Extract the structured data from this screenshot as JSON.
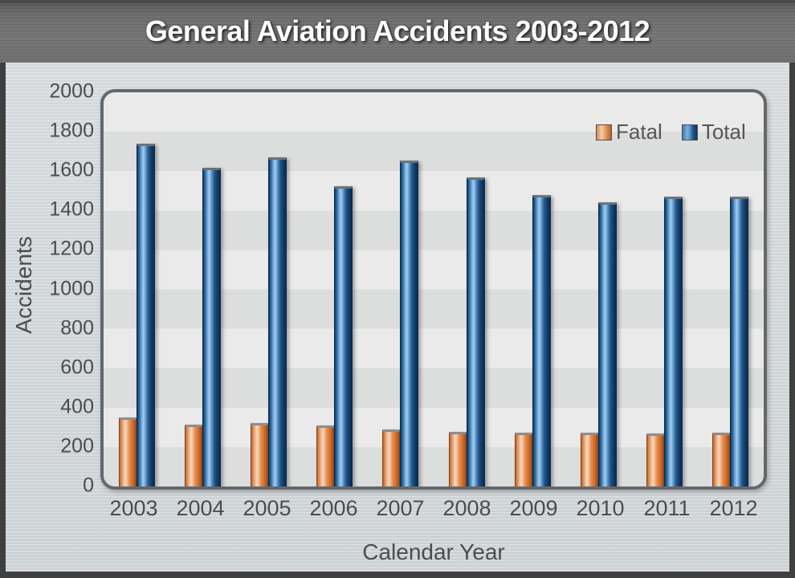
{
  "title": "General Aviation Accidents 2003-2012",
  "legend": {
    "fatal_label": "Fatal",
    "total_label": "Total"
  },
  "colors": {
    "fatal": "#e0813f",
    "total": "#2e6da4",
    "band_light": "#eaeaea",
    "band_dark": "#dcdddd",
    "panel": "#d0d5d8",
    "title_band": "#6e6e6e",
    "axis_text": "#4c4c4c"
  },
  "chart_data": {
    "type": "bar",
    "title": "General Aviation Accidents 2003-2012",
    "xlabel": "Calendar Year",
    "ylabel": "Accidents",
    "categories": [
      "2003",
      "2004",
      "2005",
      "2006",
      "2007",
      "2008",
      "2009",
      "2010",
      "2011",
      "2012"
    ],
    "series": [
      {
        "name": "Fatal",
        "color": "#e0813f",
        "values": [
          352,
          314,
          321,
          308,
          288,
          277,
          275,
          271,
          269,
          271
        ]
      },
      {
        "name": "Total",
        "color": "#2e6da4",
        "values": [
          1741,
          1617,
          1671,
          1523,
          1654,
          1569,
          1480,
          1440,
          1470,
          1471
        ]
      }
    ],
    "ylim": [
      0,
      2000
    ],
    "ytick_step": 200,
    "yticks": [
      "2000",
      "1800",
      "1600",
      "1400",
      "1200",
      "1000",
      "800",
      "600",
      "400",
      "200",
      "0"
    ],
    "grid": "alternating-horizontal-bands",
    "legend_position": "top-right-inside"
  }
}
